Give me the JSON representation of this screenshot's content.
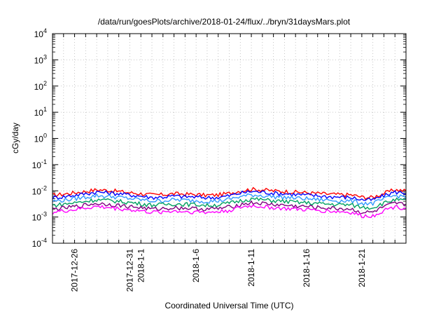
{
  "chart_data": {
    "type": "line",
    "title": "/data/run/goesPlots/archive/2018-01-24/flux/../bryn/31daysMars.plot",
    "xlabel": "Coordinated Universal Time (UTC)",
    "ylabel": "cGy/day",
    "y_scale": "log",
    "ylim": [
      0.0001,
      10000
    ],
    "xlim": [
      "2017-12-24",
      "2018-01-25"
    ],
    "grid": true,
    "legend": "none",
    "y_ticks": [
      {
        "base": "10",
        "exp": "-4"
      },
      {
        "base": "10",
        "exp": "-3"
      },
      {
        "base": "10",
        "exp": "-2"
      },
      {
        "base": "10",
        "exp": "-1"
      },
      {
        "base": "10",
        "exp": "0"
      },
      {
        "base": "10",
        "exp": "1"
      },
      {
        "base": "10",
        "exp": "2"
      },
      {
        "base": "10",
        "exp": "3"
      },
      {
        "base": "10",
        "exp": "4"
      }
    ],
    "x_ticks": [
      {
        "date": "2017-12-26",
        "label": "2017-12-26"
      },
      {
        "date": "2017-12-31",
        "label": "2017-12-31"
      },
      {
        "date": "2018-01-01",
        "label": "2018-1-1"
      },
      {
        "date": "2018-01-06",
        "label": "2018-1-6"
      },
      {
        "date": "2018-01-11",
        "label": "2018-1-11"
      },
      {
        "date": "2018-01-16",
        "label": "2018-1-16"
      },
      {
        "date": "2018-01-21",
        "label": "2018-1-21"
      }
    ],
    "x": [
      "2017-12-24",
      "2017-12-25",
      "2017-12-26",
      "2017-12-27",
      "2017-12-28",
      "2017-12-29",
      "2017-12-30",
      "2017-12-31",
      "2018-01-01",
      "2018-01-02",
      "2018-01-03",
      "2018-01-04",
      "2018-01-05",
      "2018-01-06",
      "2018-01-07",
      "2018-01-08",
      "2018-01-09",
      "2018-01-10",
      "2018-01-11",
      "2018-01-12",
      "2018-01-13",
      "2018-01-14",
      "2018-01-15",
      "2018-01-16",
      "2018-01-17",
      "2018-01-18",
      "2018-01-19",
      "2018-01-20",
      "2018-01-21",
      "2018-01-22",
      "2018-01-23",
      "2018-01-24",
      "2018-01-25"
    ],
    "series": [
      {
        "color": "#ff0000",
        "values": [
          0.0068,
          0.0075,
          0.0085,
          0.0095,
          0.011,
          0.0105,
          0.0095,
          0.0085,
          0.0078,
          0.007,
          0.0072,
          0.0078,
          0.0075,
          0.0072,
          0.0068,
          0.007,
          0.008,
          0.01,
          0.0115,
          0.011,
          0.01,
          0.0095,
          0.009,
          0.0085,
          0.008,
          0.0075,
          0.0072,
          0.007,
          0.0058,
          0.0056,
          0.008,
          0.011,
          0.01
        ]
      },
      {
        "color": "#0000ff",
        "values": [
          0.0055,
          0.006,
          0.0068,
          0.0078,
          0.009,
          0.0085,
          0.0078,
          0.007,
          0.0063,
          0.0056,
          0.0058,
          0.0063,
          0.006,
          0.0058,
          0.0055,
          0.0056,
          0.0065,
          0.0082,
          0.0095,
          0.009,
          0.0082,
          0.0078,
          0.0073,
          0.0069,
          0.0065,
          0.006,
          0.0058,
          0.0056,
          0.0046,
          0.0045,
          0.0065,
          0.009,
          0.0082
        ]
      },
      {
        "color": "#3399ff",
        "values": [
          0.004,
          0.0044,
          0.005,
          0.0058,
          0.0066,
          0.0062,
          0.0057,
          0.0051,
          0.0046,
          0.0041,
          0.0042,
          0.0046,
          0.0044,
          0.0042,
          0.004,
          0.0041,
          0.0048,
          0.006,
          0.007,
          0.0066,
          0.006,
          0.0057,
          0.0053,
          0.005,
          0.0047,
          0.0044,
          0.0042,
          0.0041,
          0.0034,
          0.0033,
          0.0048,
          0.0066,
          0.006
        ]
      },
      {
        "color": "#00a060",
        "values": [
          0.0028,
          0.0031,
          0.0035,
          0.004,
          0.0046,
          0.0043,
          0.004,
          0.0036,
          0.0032,
          0.0029,
          0.003,
          0.0032,
          0.0031,
          0.003,
          0.0028,
          0.0029,
          0.0034,
          0.0042,
          0.0049,
          0.0046,
          0.0042,
          0.004,
          0.0037,
          0.0035,
          0.0033,
          0.0031,
          0.003,
          0.0029,
          0.0024,
          0.0023,
          0.0034,
          0.0046,
          0.0042
        ]
      },
      {
        "color": "#800080",
        "values": [
          0.002,
          0.0022,
          0.0025,
          0.0029,
          0.0033,
          0.0031,
          0.0028,
          0.0025,
          0.0023,
          0.002,
          0.0021,
          0.0023,
          0.0022,
          0.0021,
          0.002,
          0.0021,
          0.0024,
          0.003,
          0.0035,
          0.0033,
          0.003,
          0.0028,
          0.0026,
          0.0025,
          0.0023,
          0.0022,
          0.0021,
          0.002,
          0.0015,
          0.0015,
          0.0024,
          0.0033,
          0.003
        ]
      },
      {
        "color": "#ff00ff",
        "values": [
          0.0015,
          0.0017,
          0.0019,
          0.0022,
          0.0025,
          0.0023,
          0.0021,
          0.0019,
          0.0017,
          0.0015,
          0.0016,
          0.0017,
          0.0016,
          0.0016,
          0.0015,
          0.0016,
          0.0018,
          0.0023,
          0.0027,
          0.0025,
          0.0023,
          0.0021,
          0.002,
          0.0019,
          0.0018,
          0.0017,
          0.0016,
          0.0015,
          0.0011,
          0.0011,
          0.0018,
          0.0025,
          0.0022
        ]
      }
    ]
  }
}
